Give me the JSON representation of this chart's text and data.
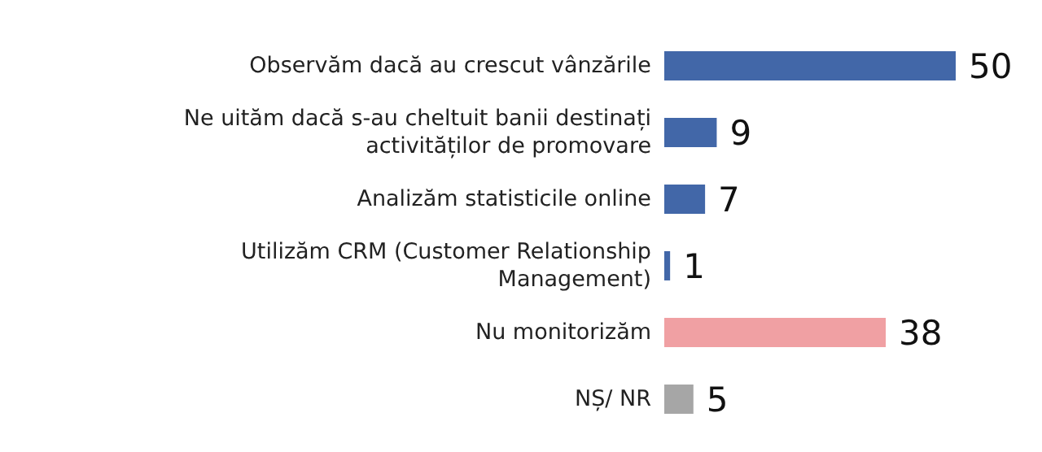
{
  "chart_data": {
    "type": "bar",
    "orientation": "horizontal",
    "categories": [
      "Observăm dacă au crescut vânzările",
      "Ne uităm dacă s-au cheltuit banii destinați activităților de promovare",
      "Analizăm statisticile online",
      "Utilizăm CRM (Customer Relationship Management)",
      "Nu monitorizăm",
      "NȘ/ NR"
    ],
    "values": [
      50,
      9,
      7,
      1,
      38,
      5
    ],
    "colors": [
      "#4267a8",
      "#4267a8",
      "#4267a8",
      "#4267a8",
      "#f0a0a3",
      "#a6a6a6"
    ],
    "data_labels": true
  }
}
